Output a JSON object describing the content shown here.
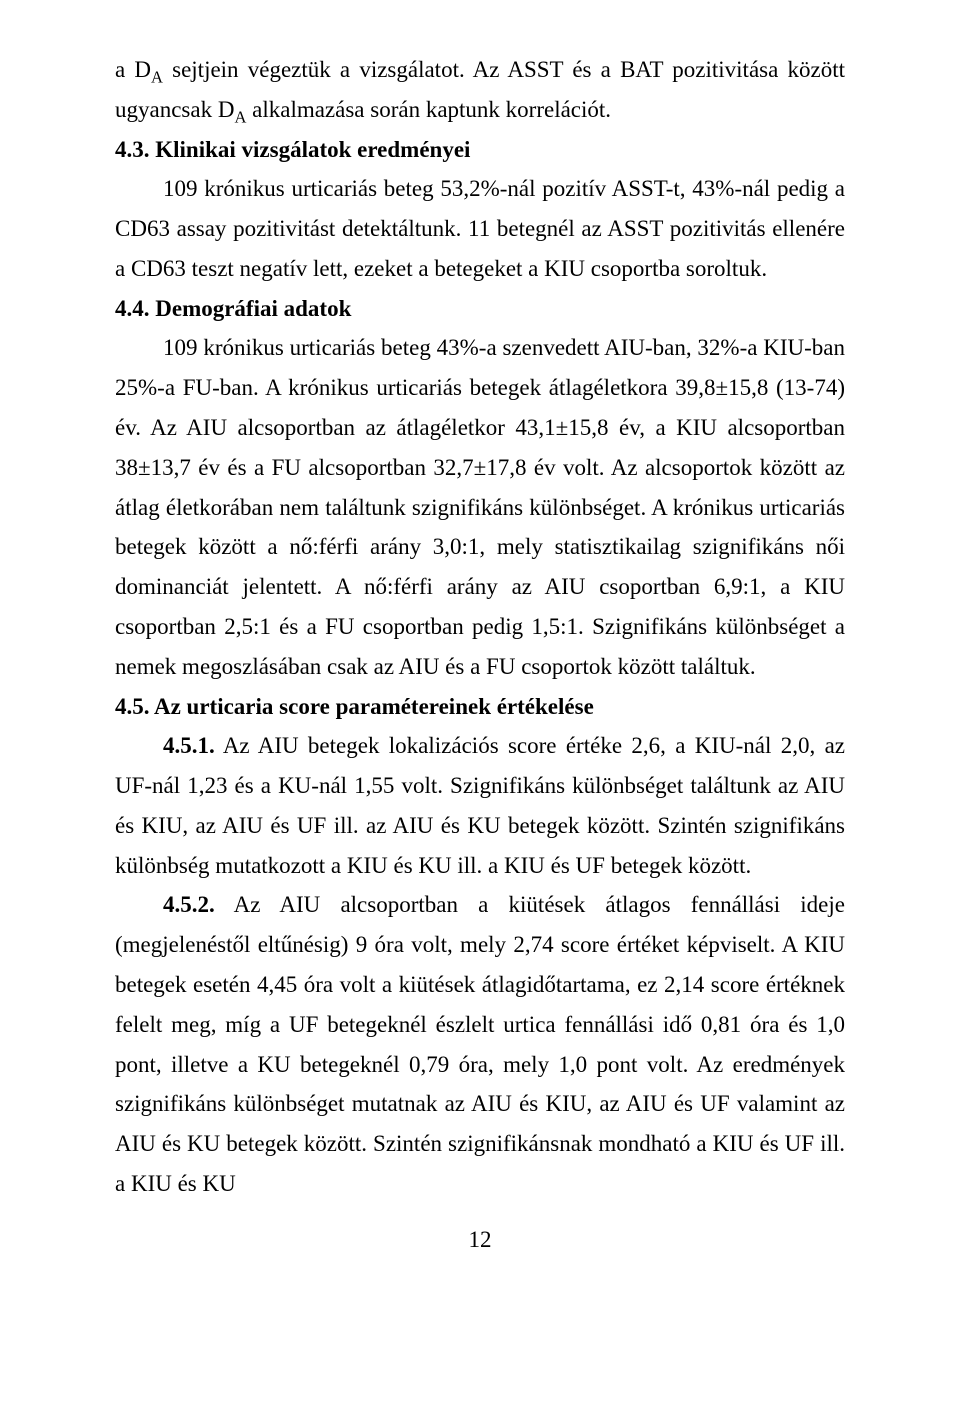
{
  "body": {
    "p1": "a D",
    "p1sub": "A",
    "p1b": " sejtjein végeztük a vizsgálatot. Az ASST és a BAT pozitivitása között ugyancsak D",
    "p1sub2": "A",
    "p1c": " alkalmazása során kaptunk korrelációt.",
    "h43": "4.3. Klinikai vizsgálatok eredményei",
    "p43": "109 krónikus urticariás beteg 53,2%-nál pozitív ASST-t, 43%-nál pedig a CD63 assay pozitivitást detektáltunk. 11 betegnél az ASST pozitivitás ellenére a CD63 teszt negatív lett, ezeket a betegeket a KIU csoportba soroltuk.",
    "h44": "4.4. Demográfiai adatok",
    "p44": "109 krónikus urticariás beteg 43%-a szenvedett AIU-ban, 32%-a KIU-ban 25%-a FU-ban. A krónikus urticariás betegek átlagéletkora 39,8±15,8 (13-74) év. Az AIU alcsoportban az átlagéletkor 43,1±15,8 év, a KIU alcsoportban 38±13,7 év és a FU alcsoportban 32,7±17,8 év volt. Az alcsoportok között az átlag életkorában nem találtunk szignifikáns különbséget. A krónikus urticariás betegek között a nő:férfi arány 3,0:1, mely statisztikailag szignifikáns női dominanciát jelentett. A nő:férfi arány az AIU csoportban 6,9:1, a KIU csoportban 2,5:1 és a FU csoportban pedig 1,5:1. Szignifikáns különbséget a nemek megoszlásában csak az AIU és a FU csoportok között találtuk.",
    "h45": "4.5. Az urticaria score paramétereinek értékelése",
    "p451bold": "4.5.1.",
    "p451": " Az AIU betegek lokalizációs score értéke 2,6, a KIU-nál 2,0, az UF-nál 1,23 és a KU-nál 1,55 volt. Szignifikáns különbséget találtunk az AIU és KIU, az AIU és UF ill. az AIU és KU betegek között. Szintén szignifikáns különbség mutatkozott a KIU és KU ill. a KIU és UF betegek között.",
    "p452bold": "4.5.2.",
    "p452": " Az AIU alcsoportban a kiütések átlagos fennállási ideje (megjelenéstől eltűnésig) 9 óra volt, mely 2,74 score értéket képviselt. A KIU betegek esetén 4,45 óra volt a kiütések átlagidőtartama, ez 2,14 score értéknek felelt meg, míg a UF betegeknél észlelt urtica fennállási idő 0,81 óra és 1,0 pont, illetve a KU betegeknél 0,79 óra, mely 1,0 pont volt. Az eredmények szignifikáns különbséget mutatnak az AIU és KIU, az AIU és UF valamint az AIU és KU betegek között. Szintén szignifikánsnak mondható a KIU és UF ill. a KIU és KU"
  },
  "pageNumber": "12"
}
